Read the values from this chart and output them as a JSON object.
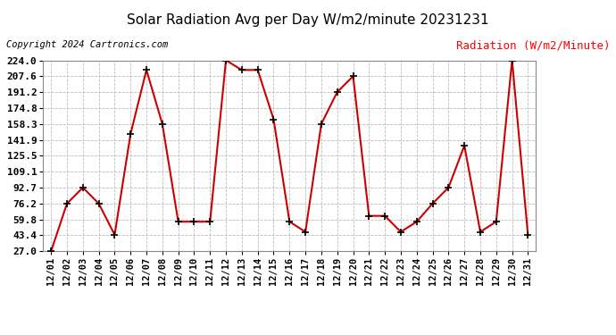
{
  "title": "Solar Radiation Avg per Day W/m2/minute 20231231",
  "copyright": "Copyright 2024 Cartronics.com",
  "legend_label": "Radiation (W/m2/Minute)",
  "dates": [
    "12/01",
    "12/02",
    "12/03",
    "12/04",
    "12/05",
    "12/06",
    "12/07",
    "12/08",
    "12/09",
    "12/10",
    "12/11",
    "12/12",
    "12/13",
    "12/14",
    "12/15",
    "12/16",
    "12/17",
    "12/18",
    "12/19",
    "12/20",
    "12/21",
    "12/22",
    "12/23",
    "12/24",
    "12/25",
    "12/26",
    "12/27",
    "12/28",
    "12/29",
    "12/30",
    "12/31"
  ],
  "values": [
    27.0,
    76.2,
    92.7,
    76.2,
    44.0,
    148.0,
    214.0,
    158.3,
    57.5,
    57.5,
    57.5,
    224.0,
    214.0,
    214.0,
    163.0,
    57.5,
    47.0,
    158.3,
    191.2,
    207.6,
    63.5,
    63.5,
    47.0,
    57.5,
    76.2,
    92.7,
    136.0,
    47.0,
    57.5,
    224.0,
    43.4
  ],
  "line_color": "#cc0000",
  "marker": "+",
  "marker_color": "#000000",
  "marker_size": 6,
  "line_width": 1.5,
  "ylim_min": 27.0,
  "ylim_max": 224.0,
  "yticks": [
    27.0,
    43.4,
    59.8,
    76.2,
    92.7,
    109.1,
    125.5,
    141.9,
    158.3,
    174.8,
    191.2,
    207.6,
    224.0
  ],
  "grid_color": "#bbbbbb",
  "bg_color": "#ffffff",
  "title_fontsize": 11,
  "copyright_fontsize": 7.5,
  "legend_fontsize": 9,
  "tick_fontsize": 7.5,
  "ytick_fontsize": 8,
  "ytick_fontweight": "bold"
}
